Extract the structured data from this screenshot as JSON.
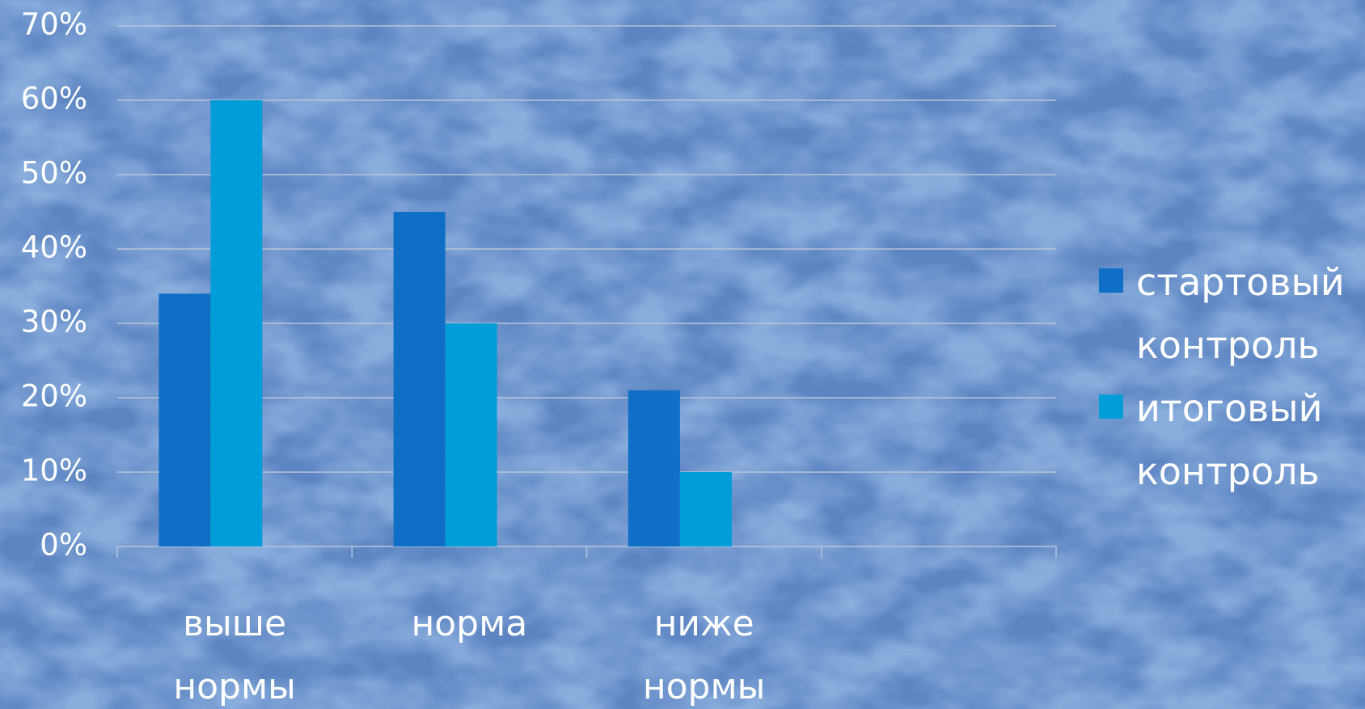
{
  "chart_data": {
    "type": "bar",
    "categories": [
      "выше нормы",
      "норма",
      "ниже нормы",
      null
    ],
    "series": [
      {
        "name": "стартовый контроль",
        "color": "#0f6fc6",
        "values": [
          34,
          45,
          21,
          null
        ]
      },
      {
        "name": "итоговый контроль",
        "color": "#009dd9",
        "values": [
          60,
          30,
          10,
          null
        ]
      }
    ],
    "ylim": [
      0,
      70
    ],
    "yticks": [
      {
        "value": 0,
        "label": "0%"
      },
      {
        "value": 10,
        "label": "10%"
      },
      {
        "value": 20,
        "label": "20%"
      },
      {
        "value": 30,
        "label": "30%"
      },
      {
        "value": 40,
        "label": "40%"
      },
      {
        "value": 50,
        "label": "50%"
      },
      {
        "value": 60,
        "label": "60%"
      },
      {
        "value": 70,
        "label": "70%"
      }
    ],
    "grid": true,
    "legend": "right"
  }
}
